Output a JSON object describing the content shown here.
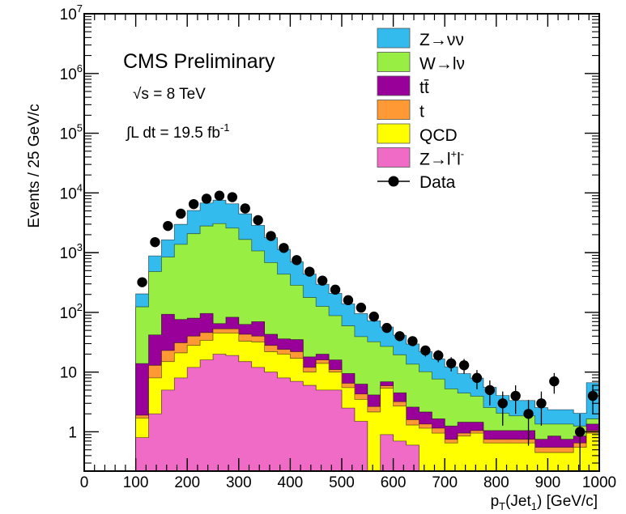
{
  "chart_data": {
    "type": "bar",
    "stacked": true,
    "histogram_style": "step",
    "title": "",
    "xlabel": "p_T(Jet_1) [GeV/c]",
    "xlabel_parts": {
      "base": "p",
      "sub1": "T",
      "mid": "(Jet",
      "sub2": "1",
      "end": ") [GeV/c]"
    },
    "ylabel": "Events / 25 GeV/c",
    "x_range": [
      0,
      1000
    ],
    "y_range": [
      0.22,
      10000000.0
    ],
    "y_scale": "log",
    "bin_edges": [
      100,
      125,
      150,
      175,
      200,
      225,
      250,
      275,
      300,
      325,
      350,
      375,
      400,
      425,
      450,
      475,
      500,
      525,
      550,
      575,
      600,
      625,
      650,
      675,
      700,
      725,
      750,
      775,
      800,
      825,
      850,
      875,
      900,
      925,
      950,
      975,
      1000
    ],
    "x_ticks": [
      {
        "value": 0,
        "label": "0"
      },
      {
        "value": 100,
        "label": "100"
      },
      {
        "value": 200,
        "label": "200"
      },
      {
        "value": 300,
        "label": "300"
      },
      {
        "value": 400,
        "label": "400"
      },
      {
        "value": 500,
        "label": "500"
      },
      {
        "value": 600,
        "label": "600"
      },
      {
        "value": 700,
        "label": "700"
      },
      {
        "value": 800,
        "label": "800"
      },
      {
        "value": 900,
        "label": "900"
      },
      {
        "value": 1000,
        "label": "1000"
      }
    ],
    "y_ticks": [
      {
        "value": 1,
        "label": "1",
        "exp": ""
      },
      {
        "value": 10,
        "label": "10",
        "exp": ""
      },
      {
        "value": 100,
        "label": "10",
        "exp": "2"
      },
      {
        "value": 1000,
        "label": "10",
        "exp": "3"
      },
      {
        "value": 10000,
        "label": "10",
        "exp": "4"
      },
      {
        "value": 100000,
        "label": "10",
        "exp": "5"
      },
      {
        "value": 1000000,
        "label": "10",
        "exp": "6"
      },
      {
        "value": 10000000,
        "label": "10",
        "exp": "7"
      }
    ],
    "annotation": {
      "experiment": "CMS Preliminary",
      "energy": "√s = 8 TeV",
      "lumi_prefix": "∫L dt = 19.5 fb",
      "lumi_exp": "-1"
    },
    "legend_position": "top-right",
    "series": [
      {
        "name": "Z→l⁺l⁻",
        "legend": {
          "base": "Z→l",
          "sup1": "+",
          "mid": "l",
          "sup2": "-"
        },
        "color": "#f06bc6",
        "values": [
          0.8,
          2,
          5,
          8,
          12,
          16,
          20,
          19,
          15,
          12,
          10,
          8,
          7,
          6,
          5,
          5,
          2.5,
          1.5,
          0.15,
          0.9,
          0.7,
          0.6,
          0.15,
          0.15,
          0.15,
          0.15,
          0.15,
          0.15,
          0.15,
          0.15,
          0.15,
          0.15,
          0.15,
          0.15,
          0.15,
          0.15
        ]
      },
      {
        "name": "QCD",
        "legend": {
          "base": "QCD"
        },
        "color": "#ffff00",
        "values": [
          0.9,
          6,
          10,
          13,
          16,
          18,
          25,
          26,
          18,
          20,
          12,
          12,
          10,
          4,
          9,
          5,
          3,
          2,
          2,
          4.5,
          2,
          0.7,
          1,
          0.8,
          0.5,
          0.7,
          0.8,
          0.5,
          0.5,
          0.5,
          0.5,
          0.3,
          0.3,
          0.3,
          0.4,
          0.8
        ]
      },
      {
        "name": "t",
        "legend": {
          "base": "t"
        },
        "color": "#ff9933",
        "values": [
          0.2,
          5,
          8,
          10,
          12,
          12,
          8,
          8,
          10,
          8,
          6,
          4,
          5,
          2,
          2,
          1,
          1,
          0.8,
          0.5,
          0.5,
          0.5,
          0.3,
          0.2,
          0.2,
          0.1,
          0.1,
          0.1,
          0.1,
          0.1,
          0.1,
          0.1,
          0.1,
          0.1,
          0.1,
          0.1,
          0.1
        ]
      },
      {
        "name": "tt̄",
        "legend": {
          "base": "tt̄"
        },
        "color": "#990099",
        "values": [
          12,
          29,
          70,
          45,
          40,
          50,
          12,
          30,
          20,
          30,
          15,
          12,
          13,
          6,
          4,
          5,
          3,
          2,
          1.5,
          1,
          1.3,
          1,
          0.8,
          0.5,
          0.5,
          0.5,
          0.4,
          0.3,
          0.3,
          0.3,
          0.3,
          0.2,
          0.3,
          0.2,
          0.2,
          0.3
        ]
      },
      {
        "name": "W→lν",
        "legend": {
          "base": "W→lν"
        },
        "color": "#99ee44",
        "values": [
          110,
          440,
          750,
          1300,
          2000,
          2700,
          3000,
          2500,
          1600,
          1000,
          640,
          400,
          250,
          160,
          106,
          72,
          50,
          33,
          28,
          20,
          15,
          11,
          8,
          6,
          4,
          3,
          2.5,
          1.5,
          1,
          0.8,
          0.8,
          0.6,
          0.5,
          0.6,
          0.4,
          0.3
        ]
      },
      {
        "name": "Z→νν",
        "legend": {
          "base": "Z→νν"
        },
        "color": "#33bbee",
        "values": [
          80,
          400,
          800,
          1600,
          3000,
          4000,
          4500,
          4000,
          2800,
          1800,
          1100,
          700,
          420,
          260,
          170,
          120,
          80,
          56,
          40,
          30,
          22,
          16,
          12,
          9,
          7,
          5,
          4,
          3,
          2,
          1.5,
          1.5,
          1.2,
          1,
          1,
          0.8,
          5
        ]
      }
    ],
    "data_points": {
      "name": "Data",
      "x": [
        112.5,
        137.5,
        162.5,
        187.5,
        212.5,
        237.5,
        262.5,
        287.5,
        312.5,
        337.5,
        362.5,
        387.5,
        412.5,
        437.5,
        462.5,
        487.5,
        512.5,
        537.5,
        562.5,
        587.5,
        612.5,
        637.5,
        662.5,
        687.5,
        712.5,
        737.5,
        762.5,
        787.5,
        812.5,
        837.5,
        862.5,
        887.5,
        912.5,
        962.5,
        987.5
      ],
      "y": [
        320,
        1500,
        2800,
        4500,
        6500,
        8000,
        9000,
        8500,
        5500,
        3500,
        1900,
        1200,
        750,
        480,
        340,
        240,
        160,
        120,
        85,
        55,
        40,
        33,
        23,
        19,
        14,
        13,
        8,
        5,
        3,
        4,
        2,
        3,
        7,
        1,
        4
      ]
    }
  }
}
